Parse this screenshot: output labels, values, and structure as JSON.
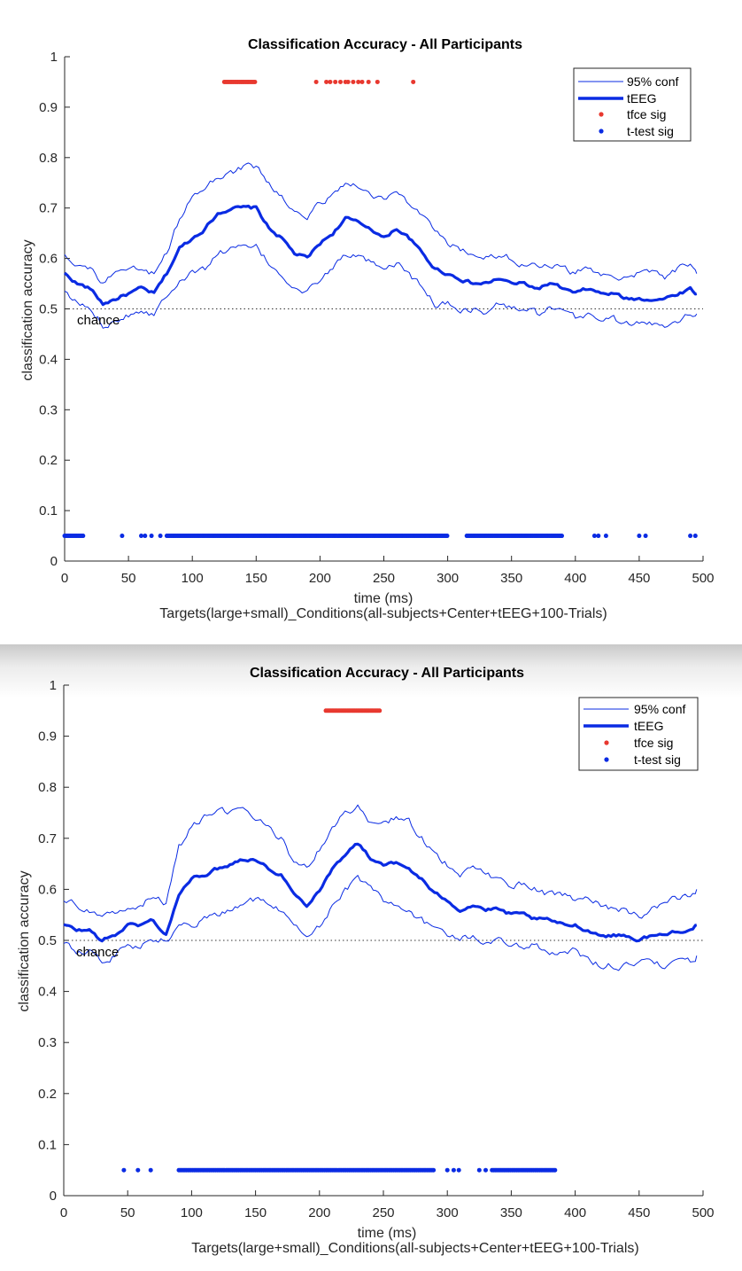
{
  "chart_data": [
    {
      "type": "line",
      "title": "Classification Accuracy - All Participants",
      "xlabel": "time (ms)",
      "ylabel": "classification accuracy",
      "subtitle": "Targets(large+small)_Conditions(all-subjects+Center+tEEG+100-Trials)",
      "xlim": [
        0,
        500
      ],
      "ylim": [
        0,
        1
      ],
      "xticks": [
        0,
        50,
        100,
        150,
        200,
        250,
        300,
        350,
        400,
        450,
        500
      ],
      "yticks": [
        0,
        0.1,
        0.2,
        0.3,
        0.4,
        0.5,
        0.6,
        0.7,
        0.8,
        0.9,
        1
      ],
      "xtick_labels": [
        "0",
        "50",
        "100",
        "150",
        "200",
        "250",
        "300",
        "350",
        "400",
        "450",
        "500"
      ],
      "ytick_labels": [
        "0",
        "0.1",
        "0.2",
        "0.3",
        "0.4",
        "0.5",
        "0.6",
        "0.7",
        "0.8",
        "0.9",
        "1"
      ],
      "chance_level": 0.5,
      "chance_label": "chance",
      "legend_position": "top-right",
      "legend": [
        "95% conf",
        "tEEG",
        "tfce sig",
        "t-test sig"
      ],
      "colors": {
        "accuracy": "#0a2be3",
        "tfce": "#e8382f",
        "ttest": "#0a2be3"
      },
      "x": [
        0,
        10,
        20,
        30,
        40,
        50,
        60,
        70,
        80,
        90,
        100,
        110,
        120,
        130,
        140,
        150,
        160,
        170,
        180,
        190,
        200,
        210,
        220,
        230,
        240,
        250,
        260,
        270,
        280,
        290,
        300,
        310,
        320,
        330,
        340,
        350,
        360,
        370,
        380,
        390,
        400,
        410,
        420,
        430,
        440,
        450,
        460,
        470,
        480,
        490,
        495
      ],
      "series": [
        {
          "name": "tEEG",
          "role": "mean",
          "values": [
            0.57,
            0.55,
            0.54,
            0.51,
            0.52,
            0.53,
            0.54,
            0.53,
            0.57,
            0.62,
            0.64,
            0.66,
            0.69,
            0.7,
            0.7,
            0.7,
            0.66,
            0.64,
            0.61,
            0.6,
            0.63,
            0.65,
            0.68,
            0.67,
            0.66,
            0.64,
            0.66,
            0.64,
            0.61,
            0.58,
            0.57,
            0.56,
            0.55,
            0.55,
            0.56,
            0.55,
            0.55,
            0.54,
            0.55,
            0.54,
            0.53,
            0.54,
            0.53,
            0.53,
            0.52,
            0.52,
            0.52,
            0.52,
            0.53,
            0.54,
            0.53
          ]
        },
        {
          "name": "95% conf",
          "role": "upper",
          "values": [
            0.61,
            0.59,
            0.58,
            0.55,
            0.57,
            0.57,
            0.58,
            0.57,
            0.61,
            0.68,
            0.72,
            0.74,
            0.76,
            0.77,
            0.78,
            0.78,
            0.75,
            0.72,
            0.69,
            0.68,
            0.71,
            0.73,
            0.75,
            0.74,
            0.73,
            0.72,
            0.73,
            0.71,
            0.68,
            0.65,
            0.63,
            0.62,
            0.6,
            0.6,
            0.61,
            0.6,
            0.59,
            0.58,
            0.59,
            0.58,
            0.57,
            0.58,
            0.57,
            0.57,
            0.56,
            0.57,
            0.57,
            0.56,
            0.58,
            0.59,
            0.57
          ]
        },
        {
          "name": "95% conf",
          "role": "lower",
          "values": [
            0.53,
            0.51,
            0.5,
            0.47,
            0.48,
            0.49,
            0.5,
            0.49,
            0.53,
            0.56,
            0.57,
            0.58,
            0.61,
            0.62,
            0.62,
            0.62,
            0.59,
            0.57,
            0.54,
            0.53,
            0.56,
            0.58,
            0.61,
            0.6,
            0.59,
            0.57,
            0.59,
            0.57,
            0.54,
            0.51,
            0.51,
            0.5,
            0.5,
            0.49,
            0.51,
            0.5,
            0.5,
            0.49,
            0.5,
            0.49,
            0.48,
            0.49,
            0.48,
            0.48,
            0.47,
            0.47,
            0.47,
            0.47,
            0.48,
            0.49,
            0.49
          ]
        }
      ],
      "tfce_sig": {
        "y": 0.95,
        "ranges": [
          [
            125,
            150
          ]
        ],
        "points": [
          197,
          205,
          208,
          212,
          216,
          220,
          222,
          226,
          230,
          233,
          238,
          245,
          273
        ]
      },
      "ttest_sig": {
        "y": 0.05,
        "ranges": [
          [
            0,
            15
          ],
          [
            80,
            300
          ],
          [
            315,
            390
          ]
        ],
        "points": [
          45,
          60,
          63,
          68,
          75,
          415,
          418,
          424,
          450,
          455,
          490,
          494
        ]
      }
    },
    {
      "type": "line",
      "title": "Classification Accuracy - All Participants",
      "xlabel": "time (ms)",
      "ylabel": "classification accuracy",
      "subtitle": "Targets(large+small)_Conditions(all-subjects+Center+tEEG+100-Trials)",
      "xlim": [
        0,
        500
      ],
      "ylim": [
        0,
        1
      ],
      "xticks": [
        0,
        50,
        100,
        150,
        200,
        250,
        300,
        350,
        400,
        450,
        500
      ],
      "yticks": [
        0,
        0.1,
        0.2,
        0.3,
        0.4,
        0.5,
        0.6,
        0.7,
        0.8,
        0.9,
        1
      ],
      "xtick_labels": [
        "0",
        "50",
        "100",
        "150",
        "200",
        "250",
        "300",
        "350",
        "400",
        "450",
        "500"
      ],
      "ytick_labels": [
        "0",
        "0.1",
        "0.2",
        "0.3",
        "0.4",
        "0.5",
        "0.6",
        "0.7",
        "0.8",
        "0.9",
        "1"
      ],
      "chance_level": 0.5,
      "chance_label": "chance",
      "legend_position": "top-right",
      "legend": [
        "95% conf",
        "tEEG",
        "tfce sig",
        "t-test sig"
      ],
      "colors": {
        "accuracy": "#0a2be3",
        "tfce": "#e8382f",
        "ttest": "#0a2be3"
      },
      "x": [
        0,
        10,
        20,
        30,
        40,
        50,
        60,
        70,
        80,
        90,
        100,
        110,
        120,
        130,
        140,
        150,
        160,
        170,
        180,
        190,
        200,
        210,
        220,
        230,
        240,
        250,
        260,
        270,
        280,
        290,
        300,
        310,
        320,
        330,
        340,
        350,
        360,
        370,
        380,
        390,
        400,
        410,
        420,
        430,
        440,
        450,
        460,
        470,
        480,
        490,
        495
      ],
      "series": [
        {
          "name": "tEEG",
          "role": "mean",
          "values": [
            0.53,
            0.52,
            0.52,
            0.5,
            0.51,
            0.53,
            0.53,
            0.54,
            0.51,
            0.59,
            0.62,
            0.63,
            0.64,
            0.65,
            0.66,
            0.66,
            0.64,
            0.63,
            0.59,
            0.57,
            0.6,
            0.64,
            0.67,
            0.69,
            0.66,
            0.65,
            0.65,
            0.64,
            0.62,
            0.59,
            0.58,
            0.56,
            0.57,
            0.56,
            0.56,
            0.55,
            0.55,
            0.54,
            0.54,
            0.53,
            0.53,
            0.52,
            0.51,
            0.51,
            0.51,
            0.5,
            0.51,
            0.51,
            0.52,
            0.52,
            0.53
          ]
        },
        {
          "name": "95% conf",
          "role": "upper",
          "values": [
            0.58,
            0.57,
            0.56,
            0.54,
            0.55,
            0.57,
            0.57,
            0.59,
            0.57,
            0.68,
            0.72,
            0.74,
            0.75,
            0.75,
            0.76,
            0.74,
            0.72,
            0.7,
            0.65,
            0.64,
            0.68,
            0.72,
            0.75,
            0.76,
            0.73,
            0.73,
            0.74,
            0.73,
            0.7,
            0.67,
            0.65,
            0.63,
            0.64,
            0.63,
            0.62,
            0.61,
            0.61,
            0.6,
            0.59,
            0.59,
            0.58,
            0.58,
            0.57,
            0.56,
            0.56,
            0.55,
            0.56,
            0.57,
            0.58,
            0.59,
            0.6
          ]
        },
        {
          "name": "95% conf",
          "role": "lower",
          "values": [
            0.49,
            0.48,
            0.48,
            0.46,
            0.47,
            0.49,
            0.49,
            0.5,
            0.5,
            0.52,
            0.53,
            0.54,
            0.55,
            0.56,
            0.57,
            0.58,
            0.57,
            0.56,
            0.52,
            0.51,
            0.53,
            0.57,
            0.6,
            0.62,
            0.6,
            0.58,
            0.57,
            0.56,
            0.54,
            0.52,
            0.51,
            0.5,
            0.51,
            0.5,
            0.5,
            0.49,
            0.49,
            0.49,
            0.48,
            0.48,
            0.48,
            0.46,
            0.45,
            0.45,
            0.45,
            0.45,
            0.46,
            0.45,
            0.46,
            0.46,
            0.47
          ]
        }
      ],
      "tfce_sig": {
        "y": 0.95,
        "ranges": [
          [
            205,
            248
          ]
        ],
        "points": []
      },
      "ttest_sig": {
        "y": 0.05,
        "ranges": [
          [
            90,
            290
          ],
          [
            335,
            385
          ]
        ],
        "points": [
          47,
          58,
          68,
          300,
          305,
          309,
          325,
          330
        ]
      }
    }
  ]
}
